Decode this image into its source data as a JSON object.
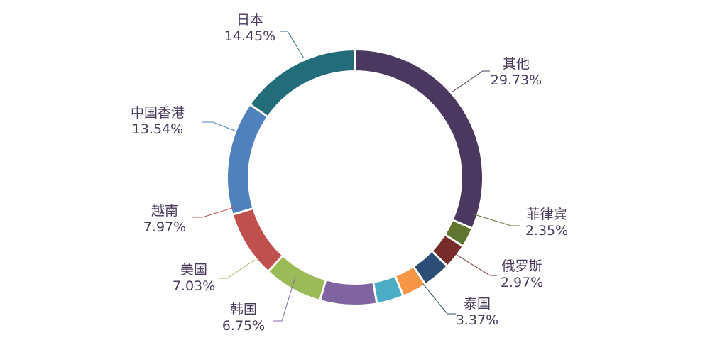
{
  "chart_data": {
    "type": "pie",
    "variant": "donut",
    "title": "",
    "legend": "none",
    "slices": [
      {
        "label": "其他",
        "value": 29.73,
        "value_text": "29.73%",
        "color": "#4b3861"
      },
      {
        "label": "菲律宾",
        "value": 2.35,
        "value_text": "2.35%",
        "color": "#60752f"
      },
      {
        "label": "俄罗斯",
        "value": 2.97,
        "value_text": "2.97%",
        "color": "#772c2a"
      },
      {
        "label": "泰国",
        "value": 3.37,
        "value_text": "3.37%",
        "color": "#2c4d75"
      },
      {
        "label": "",
        "value": 2.92,
        "value_text": "",
        "color": "#f79646"
      },
      {
        "label": "",
        "value": 3.23,
        "value_text": "",
        "color": "#4bacc6"
      },
      {
        "label": "韩国",
        "value": 6.75,
        "value_text": "6.75%",
        "color": "#8064a2"
      },
      {
        "label": "美国",
        "value": 7.03,
        "value_text": "7.03%",
        "color": "#9bbb59"
      },
      {
        "label": "越南",
        "value": 7.97,
        "value_text": "7.97%",
        "color": "#c0504d"
      },
      {
        "label": "中国香港",
        "value": 13.54,
        "value_text": "13.54%",
        "color": "#4f81bd"
      },
      {
        "label": "日本",
        "value": 14.45,
        "value_text": "14.45%",
        "color": "#236c7a"
      }
    ]
  }
}
